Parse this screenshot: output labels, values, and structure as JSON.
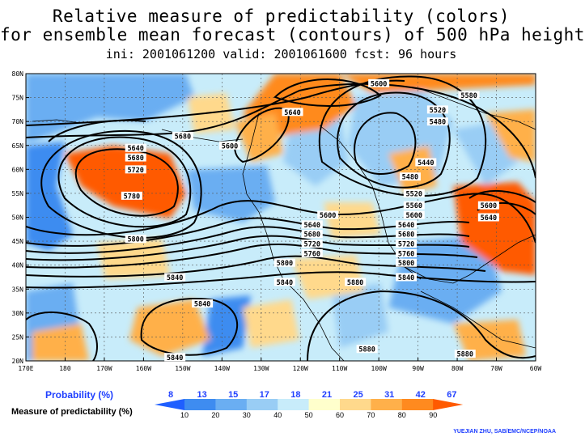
{
  "title": {
    "line1": "Relative measure of predictability (colors)",
    "line2": "for ensemble mean forecast (contours) of 500 hPa height",
    "line3": "ini: 2001061200 valid: 2001061600 fcst: 96 hours"
  },
  "map": {
    "lat_labels": [
      "80N",
      "75N",
      "70N",
      "65N",
      "60N",
      "55N",
      "50N",
      "45N",
      "40N",
      "35N",
      "30N",
      "25N",
      "20N"
    ],
    "lon_labels": [
      "170E",
      "180",
      "170W",
      "160W",
      "150W",
      "140W",
      "130W",
      "120W",
      "110W",
      "100W",
      "90W",
      "80W",
      "70W",
      "60W"
    ],
    "lat_range": [
      20,
      80
    ],
    "lon_range": [
      "170E",
      "60W"
    ],
    "grid": true
  },
  "contour_labels": [
    {
      "text": "5600",
      "lon": -100,
      "lat": 78
    },
    {
      "text": "5580",
      "lon": -77,
      "lat": 75.5
    },
    {
      "text": "5640",
      "lon": -122,
      "lat": 72
    },
    {
      "text": "5520",
      "lon": -85,
      "lat": 72.5
    },
    {
      "text": "5480",
      "lon": -85,
      "lat": 70
    },
    {
      "text": "5680",
      "lon": -150,
      "lat": 67
    },
    {
      "text": "5600",
      "lon": -138,
      "lat": 65
    },
    {
      "text": "5640",
      "lon": -162,
      "lat": 64.5
    },
    {
      "text": "5680",
      "lon": -162,
      "lat": 62.5
    },
    {
      "text": "5720",
      "lon": -162,
      "lat": 60
    },
    {
      "text": "5440",
      "lon": -88,
      "lat": 61.5
    },
    {
      "text": "5480",
      "lon": -92,
      "lat": 58.5
    },
    {
      "text": "5780",
      "lon": -163,
      "lat": 54.5
    },
    {
      "text": "5520",
      "lon": -91,
      "lat": 55
    },
    {
      "text": "5560",
      "lon": -91,
      "lat": 52.5
    },
    {
      "text": "5600",
      "lon": -72,
      "lat": 52.5
    },
    {
      "text": "5600",
      "lon": -113,
      "lat": 50.5
    },
    {
      "text": "5600",
      "lon": -91,
      "lat": 50.5
    },
    {
      "text": "5640",
      "lon": -72,
      "lat": 50
    },
    {
      "text": "5640",
      "lon": -117,
      "lat": 48.5
    },
    {
      "text": "5640",
      "lon": -93,
      "lat": 48.5
    },
    {
      "text": "5680",
      "lon": -117,
      "lat": 46.5
    },
    {
      "text": "5680",
      "lon": -93,
      "lat": 46.5
    },
    {
      "text": "5800",
      "lon": -162,
      "lat": 45.5
    },
    {
      "text": "5720",
      "lon": -117,
      "lat": 44.5
    },
    {
      "text": "5720",
      "lon": -93,
      "lat": 44.5
    },
    {
      "text": "5760",
      "lon": -117,
      "lat": 42.5
    },
    {
      "text": "5760",
      "lon": -93,
      "lat": 42.5
    },
    {
      "text": "5800",
      "lon": -124,
      "lat": 40.5
    },
    {
      "text": "5800",
      "lon": -93,
      "lat": 40.5
    },
    {
      "text": "5840",
      "lon": -152,
      "lat": 37.5
    },
    {
      "text": "5840",
      "lon": -124,
      "lat": 36.5
    },
    {
      "text": "5880",
      "lon": -106,
      "lat": 36.5
    },
    {
      "text": "5840",
      "lon": -93,
      "lat": 37.5
    },
    {
      "text": "5840",
      "lon": -145,
      "lat": 32
    },
    {
      "text": "5880",
      "lon": -103,
      "lat": 22.5
    },
    {
      "text": "5880",
      "lon": -78,
      "lat": 21.5
    },
    {
      "text": "5840",
      "lon": -152,
      "lat": 20.8
    }
  ],
  "legend": {
    "probability_label": "Probability (%)",
    "probability_values": [
      "8",
      "13",
      "15",
      "17",
      "18",
      "21",
      "25",
      "31",
      "42",
      "67"
    ],
    "measure_label": "Measure of predictability (%)",
    "measure_values": [
      "10",
      "20",
      "30",
      "40",
      "50",
      "60",
      "70",
      "80",
      "90"
    ],
    "colors": [
      "#1f5fff",
      "#3e8cf0",
      "#6aaef2",
      "#99cdf5",
      "#c8ecfa",
      "#ffffcc",
      "#ffd98c",
      "#ffb04a",
      "#ff8a1f",
      "#ff5a00"
    ]
  },
  "credit": "YUEJIAN ZHU, SAB/EMC/NCEP/NOAA"
}
